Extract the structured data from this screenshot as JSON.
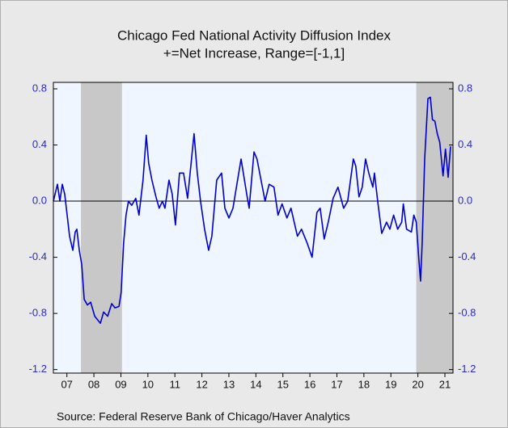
{
  "chart_data": {
    "type": "line",
    "title": "Chicago Fed National Activity Diffusion Index",
    "subtitle": "+=Net Increase, Range=[-1,1]",
    "source": "Source:  Federal Reserve Bank of Chicago/Haver Analytics",
    "x": [
      2007.0,
      2007.15,
      2007.24,
      2007.33,
      2007.42,
      2007.51,
      2007.6,
      2007.72,
      2007.81,
      2007.87,
      2007.96,
      2008.05,
      2008.14,
      2008.26,
      2008.38,
      2008.53,
      2008.74,
      2008.86,
      2009.01,
      2009.16,
      2009.28,
      2009.43,
      2009.51,
      2009.6,
      2009.69,
      2009.78,
      2009.9,
      2010.05,
      2010.17,
      2010.32,
      2010.44,
      2010.53,
      2010.65,
      2010.8,
      2010.92,
      2011.04,
      2011.13,
      2011.28,
      2011.4,
      2011.52,
      2011.67,
      2011.82,
      2011.97,
      2012.09,
      2012.21,
      2012.33,
      2012.45,
      2012.6,
      2012.75,
      2012.87,
      2013.05,
      2013.23,
      2013.35,
      2013.5,
      2013.65,
      2013.95,
      2014.16,
      2014.25,
      2014.43,
      2014.54,
      2014.84,
      2014.99,
      2015.17,
      2015.32,
      2015.47,
      2015.65,
      2015.8,
      2016.04,
      2016.19,
      2016.4,
      2016.58,
      2016.76,
      2016.88,
      2017.03,
      2017.18,
      2017.36,
      2017.54,
      2017.75,
      2017.9,
      2018.11,
      2018.2,
      2018.32,
      2018.44,
      2018.56,
      2018.68,
      2018.83,
      2018.89,
      2019.01,
      2019.16,
      2019.34,
      2019.46,
      2019.6,
      2019.75,
      2019.9,
      2019.96,
      2020.08,
      2020.26,
      2020.35,
      2020.44,
      2020.53,
      2020.6,
      2020.66,
      2020.75,
      2020.87,
      2020.96,
      2021.04,
      2021.13,
      2021.22,
      2021.31,
      2021.43,
      2021.52,
      2021.62,
      2021.71
    ],
    "series": [
      {
        "name": "Chicago Fed National Activity Diffusion Index",
        "color": "#0000cc",
        "values": [
          0.0,
          0.12,
          0.0,
          0.12,
          0.05,
          -0.1,
          -0.25,
          -0.35,
          -0.22,
          -0.2,
          -0.35,
          -0.45,
          -0.7,
          -0.74,
          -0.72,
          -0.82,
          -0.87,
          -0.79,
          -0.82,
          -0.73,
          -0.76,
          -0.75,
          -0.65,
          -0.3,
          -0.1,
          0.0,
          -0.03,
          0.02,
          -0.1,
          0.15,
          0.47,
          0.27,
          0.15,
          0.03,
          -0.05,
          0.0,
          -0.05,
          0.15,
          0.05,
          -0.17,
          0.2,
          0.2,
          0.02,
          0.25,
          0.48,
          0.2,
          0.0,
          -0.2,
          -0.35,
          -0.25,
          0.15,
          0.2,
          -0.05,
          -0.12,
          -0.05,
          0.3,
          0.05,
          -0.05,
          0.35,
          0.3,
          0.0,
          0.12,
          0.1,
          -0.1,
          -0.02,
          -0.12,
          -0.05,
          -0.25,
          -0.2,
          -0.3,
          -0.4,
          -0.08,
          -0.05,
          -0.27,
          -0.15,
          0.02,
          0.1,
          -0.05,
          0.0,
          0.3,
          0.25,
          0.03,
          0.1,
          0.3,
          0.2,
          0.1,
          0.2,
          0.0,
          -0.23,
          -0.15,
          -0.2,
          -0.1,
          -0.2,
          -0.15,
          -0.02,
          -0.2,
          -0.22,
          -0.1,
          -0.15,
          -0.4,
          -0.57,
          -0.3,
          0.3,
          0.73,
          0.74,
          0.58,
          0.57,
          0.48,
          0.42,
          0.18,
          0.37,
          0.17,
          0.39
        ]
      }
    ],
    "recessions": [
      [
        2008.02,
        2009.54
      ],
      [
        2020.44,
        2021.8
      ]
    ],
    "xlim": [
      2007,
      2021.8
    ],
    "xticks": [
      {
        "value": 2007.5,
        "label": "07"
      },
      {
        "value": 2008.5,
        "label": "08"
      },
      {
        "value": 2009.5,
        "label": "09"
      },
      {
        "value": 2010.5,
        "label": "10"
      },
      {
        "value": 2011.5,
        "label": "11"
      },
      {
        "value": 2012.5,
        "label": "12"
      },
      {
        "value": 2013.5,
        "label": "13"
      },
      {
        "value": 2014.5,
        "label": "14"
      },
      {
        "value": 2015.5,
        "label": "15"
      },
      {
        "value": 2016.5,
        "label": "16"
      },
      {
        "value": 2017.5,
        "label": "17"
      },
      {
        "value": 2018.5,
        "label": "18"
      },
      {
        "value": 2019.5,
        "label": "19"
      },
      {
        "value": 2020.5,
        "label": "20"
      },
      {
        "value": 2021.5,
        "label": "21"
      }
    ],
    "ylim": [
      -1.225,
      0.846
    ],
    "yticks": [
      {
        "value": 0.8,
        "label": "0.8"
      },
      {
        "value": 0.4,
        "label": "0.4"
      },
      {
        "value": 0,
        "label": "0.0"
      },
      {
        "value": -0.4,
        "label": "-0.4"
      },
      {
        "value": -0.8,
        "label": "-0.8"
      },
      {
        "value": -1.2,
        "label": "-1.2"
      }
    ],
    "y2lim": [
      -1.225,
      0.846
    ],
    "y2ticks": [
      {
        "value": 0.8,
        "label": "0.8"
      },
      {
        "value": 0.4,
        "label": "0.4"
      },
      {
        "value": 0,
        "label": "0.0"
      },
      {
        "value": -0.4,
        "label": "-0.4"
      },
      {
        "value": -0.8,
        "label": "-0.8"
      },
      {
        "value": -1.2,
        "label": "-1.2"
      }
    ]
  }
}
